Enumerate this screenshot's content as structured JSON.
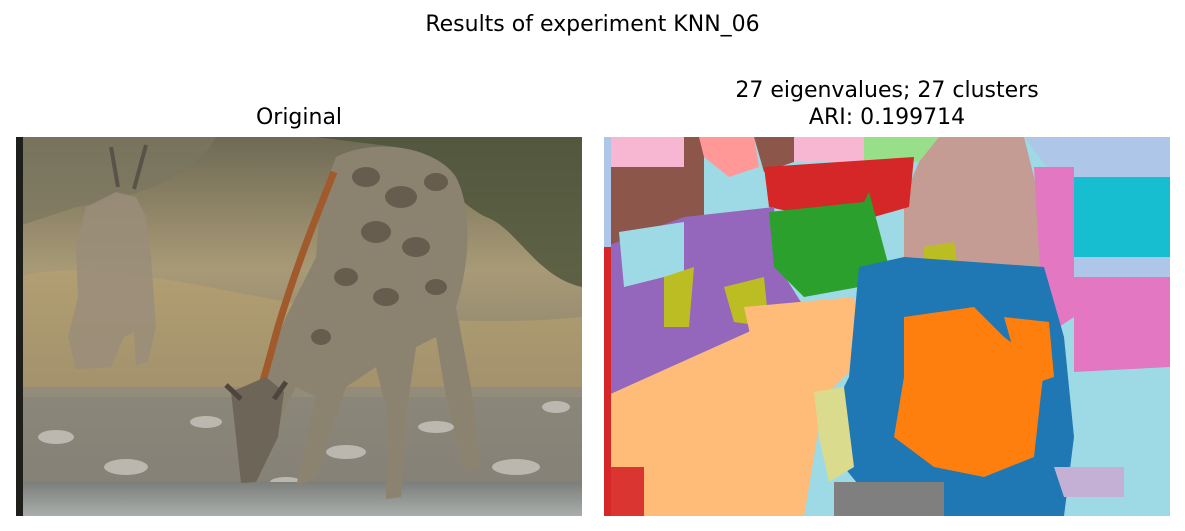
{
  "figure": {
    "suptitle": "Results of experiment KNN_06"
  },
  "left_panel": {
    "title": "Original"
  },
  "right_panel": {
    "title_line1": "27 eigenvalues; 27 clusters",
    "title_line2": "ARI: 0.199714"
  },
  "palette": {
    "brown": "#8c564b",
    "pink_light": "#f7b6d2",
    "red_light": "#ff9896",
    "green_light": "#98df8a",
    "red": "#d62728",
    "tan": "#c49c94",
    "blue_light": "#aec7e8",
    "pink": "#e377c2",
    "cyan": "#17becf",
    "cyan_light": "#9edae5",
    "purple": "#9467bd",
    "green": "#2ca02c",
    "olive": "#bcbd22",
    "olive_light": "#dbdb8d",
    "orange": "#ff7f0e",
    "orange_light": "#ffbb78",
    "blue": "#1f77b4",
    "gray": "#7f7f7f",
    "lavender": "#c5b0d5"
  }
}
